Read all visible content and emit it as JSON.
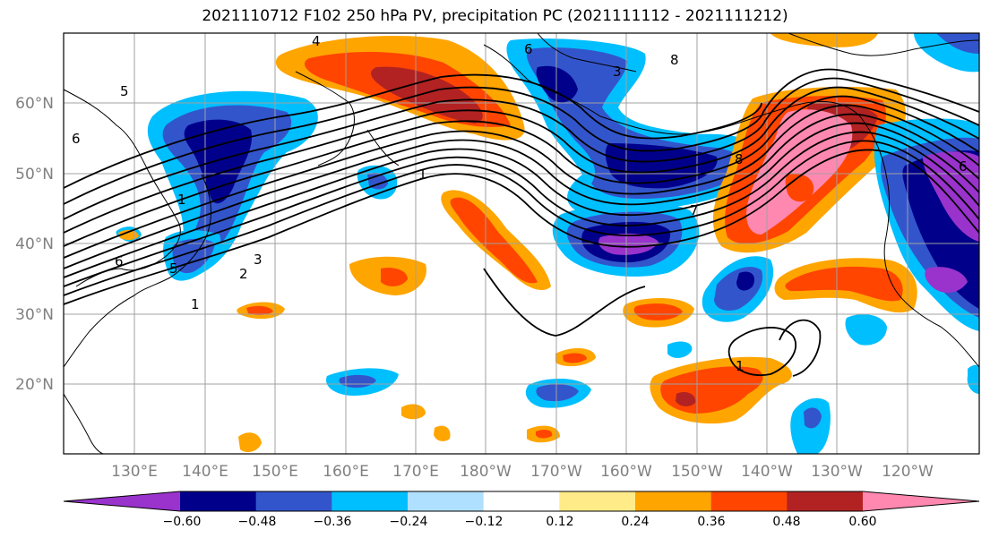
{
  "title": "2021110712 F102 250 hPa PV, precipitation PC (2021111112 - 2021111212)",
  "map": {
    "lon_labels": [
      "130°E",
      "140°E",
      "150°E",
      "160°E",
      "170°E",
      "180°W",
      "170°W",
      "160°W",
      "150°W",
      "140°W",
      "130°W",
      "120°W"
    ],
    "lat_labels": [
      "60°N",
      "50°N",
      "40°N",
      "30°N",
      "20°N"
    ],
    "contour_labels": [
      "4",
      "5",
      "6",
      "6",
      "3",
      "8",
      "1",
      "8",
      "1",
      "7",
      "6",
      "5",
      "2",
      "3",
      "1",
      "6",
      "1"
    ]
  },
  "colorbar": {
    "colors": [
      "#9933cc",
      "#00008b",
      "#3355cc",
      "#00bfff",
      "#b0e0ff",
      "#ffffff",
      "#ffeb88",
      "#ffa500",
      "#ff4500",
      "#b22222",
      "#ff88b0"
    ],
    "tick_labels": [
      "−0.60",
      "−0.48",
      "−0.36",
      "−0.24",
      "−0.12",
      "0.12",
      "0.24",
      "0.36",
      "0.48",
      "0.60"
    ]
  }
}
